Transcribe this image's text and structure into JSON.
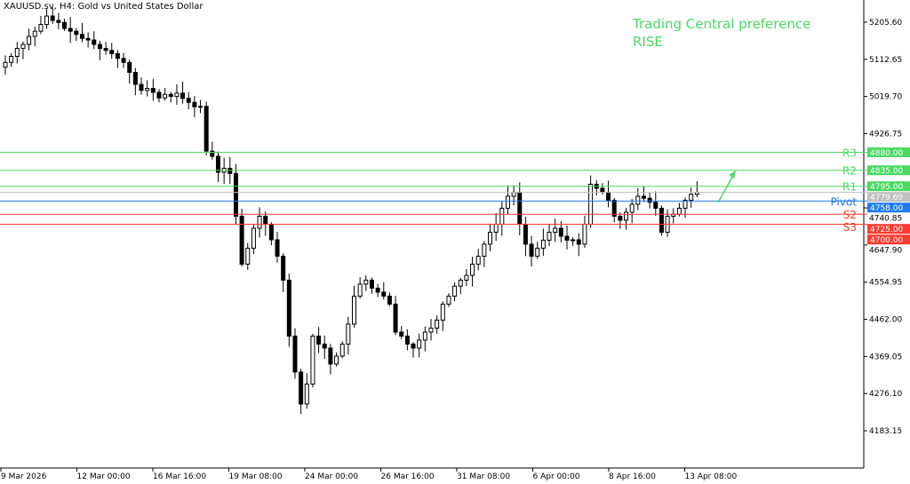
{
  "header": {
    "title": "XAUUSD.sv, H4:  Gold vs United States Dollar"
  },
  "annotation": {
    "line1": "Trading Central preference",
    "line2": "RISE",
    "color": "#4cd964",
    "direction_icon": "arrow-up-right"
  },
  "chart_data": {
    "type": "candlestick",
    "title": "XAUUSD.sv, H4:  Gold vs United States Dollar",
    "ylim": [
      4090,
      5245
    ],
    "y_ticks": [
      "5205.60",
      "5112.65",
      "5019.70",
      "4926.75",
      "4740.85",
      "4647.90",
      "4554.95",
      "4462.00",
      "4369.05",
      "4276.10",
      "4183.15"
    ],
    "y_tick_values": [
      5205.6,
      5112.65,
      5019.7,
      4926.75,
      4740.85,
      4647.9,
      4554.95,
      4462.0,
      4369.05,
      4276.1,
      4183.15
    ],
    "x_ticks": [
      "9 Mar 2026",
      "12 Mar 00:00",
      "16 Mar 16:00",
      "19 Mar 08:00",
      "24 Mar 00:00",
      "26 Mar 16:00",
      "31 Mar 08:00",
      "6 Apr 00:00",
      "8 Apr 16:00",
      "13 Apr 08:00"
    ],
    "closes": [
      5105,
      5120,
      5140,
      5150,
      5170,
      5183,
      5200,
      5221,
      5210,
      5205,
      5190,
      5183,
      5175,
      5165,
      5161,
      5150,
      5140,
      5135,
      5127,
      5115,
      5105,
      5080,
      5050,
      5035,
      5040,
      5030,
      5016,
      5025,
      5020,
      5028,
      5015,
      5005,
      4994,
      4995,
      4883,
      4870,
      4830,
      4840,
      4827,
      4720,
      4600,
      4640,
      4690,
      4720,
      4700,
      4661,
      4620,
      4560,
      4420,
      4330,
      4250,
      4300,
      4420,
      4400,
      4390,
      4350,
      4370,
      4400,
      4450,
      4520,
      4550,
      4560,
      4540,
      4530,
      4520,
      4500,
      4430,
      4420,
      4400,
      4390,
      4410,
      4430,
      4440,
      4460,
      4500,
      4520,
      4545,
      4560,
      4572,
      4600,
      4620,
      4650,
      4680,
      4700,
      4740,
      4770,
      4780,
      4700,
      4650,
      4620,
      4640,
      4660,
      4680,
      4690,
      4670,
      4660,
      4661,
      4650,
      4700,
      4800,
      4790,
      4780,
      4760,
      4720,
      4710,
      4730,
      4750,
      4770,
      4765,
      4755,
      4740,
      4680,
      4720,
      4725,
      4740,
      4760,
      4775,
      4780
    ],
    "current_price": {
      "value": 4779.69,
      "label": "4779.69",
      "color": "#c0c0c0"
    },
    "levels": [
      {
        "name": "R3",
        "value": 4880.0,
        "label": "4880.00",
        "color": "#4cd964"
      },
      {
        "name": "R2",
        "value": 4835.0,
        "label": "4835.00",
        "color": "#4cd964"
      },
      {
        "name": "R1",
        "value": 4795.0,
        "label": "4795.00",
        "color": "#4cd964"
      },
      {
        "name": "Pivot",
        "value": 4758.0,
        "label": "4758.00",
        "color": "#1e7bf0"
      },
      {
        "name": "S2",
        "value": 4725.0,
        "label": "4725.00",
        "color": "#ff3b30"
      },
      {
        "name": "S3",
        "value": 4700.0,
        "label": "4700.00",
        "color": "#ff3b30"
      }
    ]
  }
}
